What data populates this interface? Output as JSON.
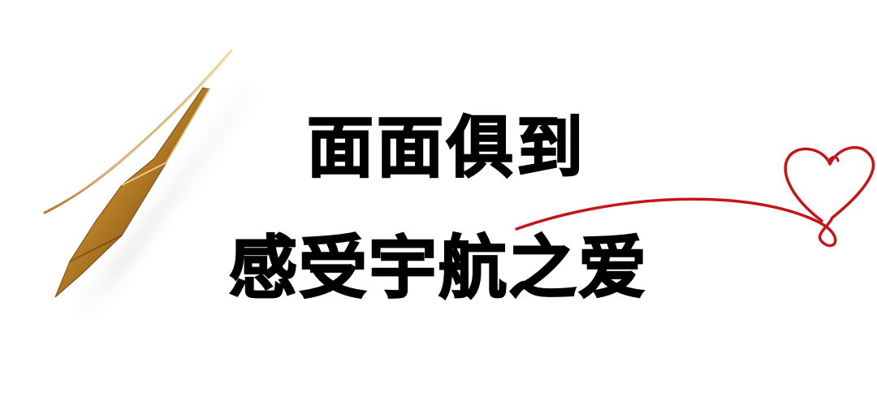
{
  "headline": {
    "line1": "面面俱到",
    "line2": "感受宇航之爱"
  },
  "colors": {
    "text": "#000000",
    "heart": "#c4151c",
    "pen_gold": "#b8822a",
    "background": "#ffffff"
  },
  "decorations": {
    "left": "fountain-pen-nib-icon",
    "right": "heart-line-icon"
  }
}
